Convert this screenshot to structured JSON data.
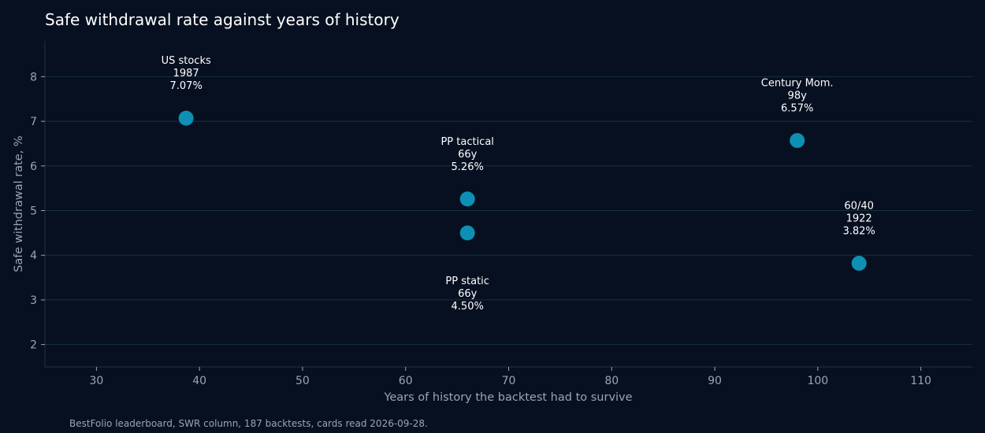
{
  "chart_data": {
    "type": "scatter",
    "title": "Safe withdrawal rate against years of history",
    "xlabel": "Years of history the backtest had to survive",
    "ylabel": "Safe withdrawal rate, %",
    "xlim": [
      25,
      115
    ],
    "ylim": [
      1.5,
      8.8
    ],
    "xticks": [
      30,
      40,
      50,
      60,
      70,
      80,
      90,
      100,
      110
    ],
    "yticks": [
      2,
      3,
      4,
      5,
      6,
      7,
      8
    ],
    "grid": "horizontal",
    "point_color": "#0e8fb4",
    "points": [
      {
        "x": 38.7,
        "y": 7.07,
        "label": [
          "US stocks",
          "1987",
          "7.07%"
        ],
        "label_position": "above"
      },
      {
        "x": 66,
        "y": 5.26,
        "label": [
          "PP tactical",
          "66y",
          "5.26%"
        ],
        "label_position": "above"
      },
      {
        "x": 66,
        "y": 4.5,
        "label": [
          "PP static",
          "66y",
          "4.50%"
        ],
        "label_position": "below"
      },
      {
        "x": 98,
        "y": 6.57,
        "label": [
          "Century Mom.",
          "98y",
          "6.57%"
        ],
        "label_position": "above"
      },
      {
        "x": 104,
        "y": 3.82,
        "label": [
          "60/40",
          "1922",
          "3.82%"
        ],
        "label_position": "above"
      }
    ]
  },
  "caption": "BestFolio leaderboard, SWR column, 187 backtests, cards read 2026-09-28."
}
